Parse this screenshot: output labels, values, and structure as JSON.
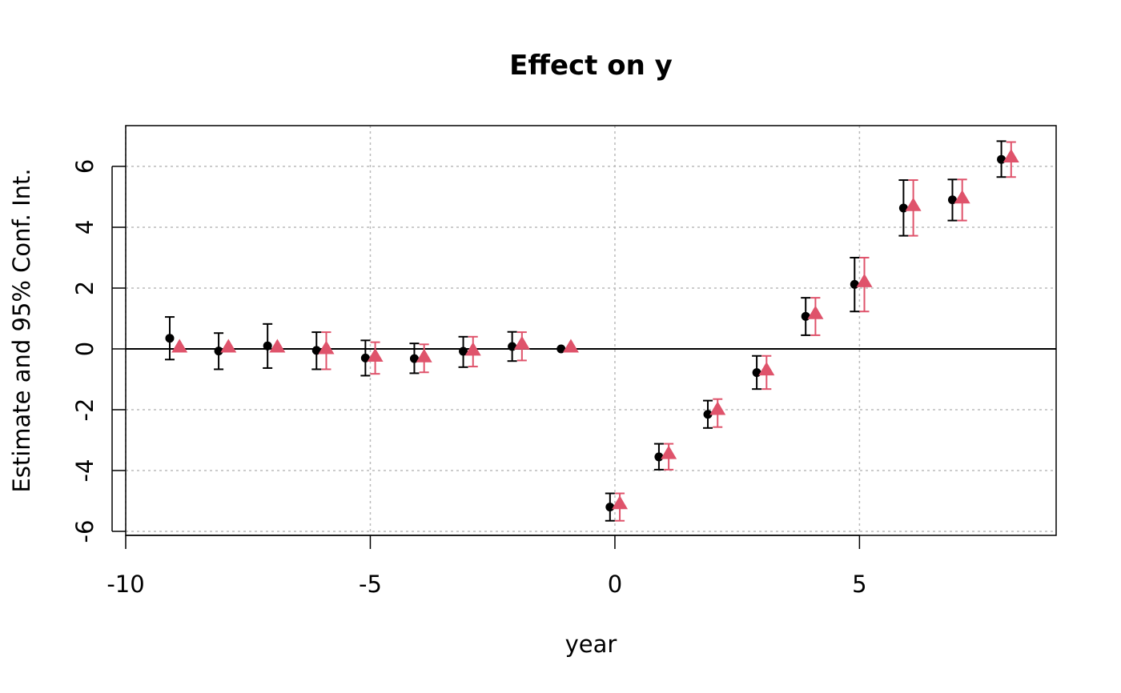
{
  "chart_data": {
    "type": "scatter",
    "title": "Effect on y",
    "xlabel": "year",
    "ylabel": "Estimate and 95% Conf. Int.",
    "xlim": [
      -10,
      9.02
    ],
    "ylim": [
      -6.13,
      7.34
    ],
    "xticks": [
      -10,
      -5,
      0,
      5
    ],
    "yticks": [
      -6,
      -4,
      -2,
      0,
      2,
      4,
      6
    ],
    "grid": true,
    "reference_line_y": 0,
    "series": [
      {
        "color": "#000000",
        "marker": "circle",
        "x_offset": -0.1,
        "points": [
          {
            "x": -9,
            "y": 0.35,
            "lo": -0.35,
            "hi": 1.05
          },
          {
            "x": -8,
            "y": -0.07,
            "lo": -0.67,
            "hi": 0.52
          },
          {
            "x": -7,
            "y": 0.1,
            "lo": -0.63,
            "hi": 0.82
          },
          {
            "x": -6,
            "y": -0.05,
            "lo": -0.67,
            "hi": 0.55
          },
          {
            "x": -5,
            "y": -0.3,
            "lo": -0.88,
            "hi": 0.28
          },
          {
            "x": -4,
            "y": -0.32,
            "lo": -0.8,
            "hi": 0.18
          },
          {
            "x": -3,
            "y": -0.08,
            "lo": -0.6,
            "hi": 0.4
          },
          {
            "x": -2,
            "y": 0.08,
            "lo": -0.4,
            "hi": 0.56
          },
          {
            "x": -1,
            "y": 0,
            "lo": null,
            "hi": null
          },
          {
            "x": 0,
            "y": -5.2,
            "lo": -5.65,
            "hi": -4.75
          },
          {
            "x": 1,
            "y": -3.55,
            "lo": -3.97,
            "hi": -3.12
          },
          {
            "x": 2,
            "y": -2.15,
            "lo": -2.6,
            "hi": -1.7
          },
          {
            "x": 3,
            "y": -0.78,
            "lo": -1.32,
            "hi": -0.23
          },
          {
            "x": 4,
            "y": 1.07,
            "lo": 0.45,
            "hi": 1.68
          },
          {
            "x": 5,
            "y": 2.12,
            "lo": 1.23,
            "hi": 3.0
          },
          {
            "x": 6,
            "y": 4.63,
            "lo": 3.72,
            "hi": 5.55
          },
          {
            "x": 7,
            "y": 4.9,
            "lo": 4.22,
            "hi": 5.57
          },
          {
            "x": 8,
            "y": 6.23,
            "lo": 5.65,
            "hi": 6.83
          }
        ]
      },
      {
        "color": "#DF536B",
        "marker": "triangle",
        "x_offset": 0.1,
        "points": [
          {
            "x": -9,
            "y": 0.05,
            "lo": null,
            "hi": null
          },
          {
            "x": -8,
            "y": 0.05,
            "lo": null,
            "hi": null
          },
          {
            "x": -7,
            "y": 0.05,
            "lo": null,
            "hi": null
          },
          {
            "x": -6,
            "y": 0.0,
            "lo": -0.67,
            "hi": 0.55
          },
          {
            "x": -5,
            "y": -0.25,
            "lo": -0.82,
            "hi": 0.22
          },
          {
            "x": -4,
            "y": -0.27,
            "lo": -0.77,
            "hi": 0.15
          },
          {
            "x": -3,
            "y": -0.05,
            "lo": -0.58,
            "hi": 0.4
          },
          {
            "x": -2,
            "y": 0.15,
            "lo": -0.38,
            "hi": 0.55
          },
          {
            "x": -1,
            "y": 0.05,
            "lo": null,
            "hi": null
          },
          {
            "x": 0,
            "y": -5.1,
            "lo": -5.65,
            "hi": -4.75
          },
          {
            "x": 1,
            "y": -3.45,
            "lo": -3.97,
            "hi": -3.12
          },
          {
            "x": 2,
            "y": -2.0,
            "lo": -2.57,
            "hi": -1.65
          },
          {
            "x": 3,
            "y": -0.7,
            "lo": -1.32,
            "hi": -0.23
          },
          {
            "x": 4,
            "y": 1.15,
            "lo": 0.45,
            "hi": 1.68
          },
          {
            "x": 5,
            "y": 2.2,
            "lo": 1.23,
            "hi": 3.0
          },
          {
            "x": 6,
            "y": 4.7,
            "lo": 3.72,
            "hi": 5.55
          },
          {
            "x": 7,
            "y": 4.95,
            "lo": 4.22,
            "hi": 5.57
          },
          {
            "x": 8,
            "y": 6.3,
            "lo": 5.65,
            "hi": 6.8
          }
        ]
      }
    ]
  }
}
